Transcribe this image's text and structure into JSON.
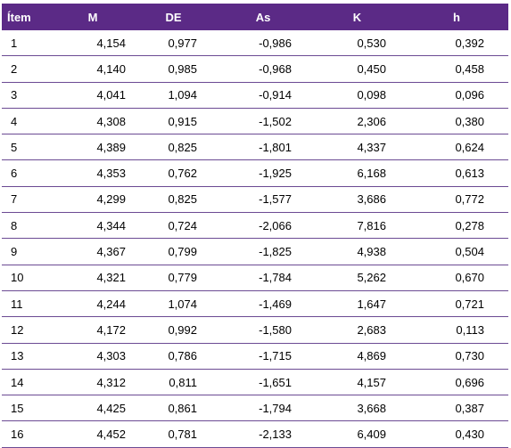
{
  "table": {
    "headers": [
      "Ítem",
      "M",
      "DE",
      "As",
      "K",
      "h"
    ],
    "rows": [
      [
        "1",
        "4,154",
        "0,977",
        "-0,986",
        "0,530",
        "0,392"
      ],
      [
        "2",
        "4,140",
        "0,985",
        "-0,968",
        "0,450",
        "0,458"
      ],
      [
        "3",
        "4,041",
        "1,094",
        "-0,914",
        "0,098",
        "0,096"
      ],
      [
        "4",
        "4,308",
        "0,915",
        "-1,502",
        "2,306",
        "0,380"
      ],
      [
        "5",
        "4,389",
        "0,825",
        "-1,801",
        "4,337",
        "0,624"
      ],
      [
        "6",
        "4,353",
        "0,762",
        "-1,925",
        "6,168",
        "0,613"
      ],
      [
        "7",
        "4,299",
        "0,825",
        "-1,577",
        "3,686",
        "0,772"
      ],
      [
        "8",
        "4,344",
        "0,724",
        "-2,066",
        "7,816",
        "0,278"
      ],
      [
        "9",
        "4,367",
        "0,799",
        "-1,825",
        "4,938",
        "0,504"
      ],
      [
        "10",
        "4,321",
        "0,779",
        "-1,784",
        "5,262",
        "0,670"
      ],
      [
        "11",
        "4,244",
        "1,074",
        "-1,469",
        "1,647",
        "0,721"
      ],
      [
        "12",
        "4,172",
        "0,992",
        "-1,580",
        "2,683",
        "0,113"
      ],
      [
        "13",
        "4,303",
        "0,786",
        "-1,715",
        "4,869",
        "0,730"
      ],
      [
        "14",
        "4,312",
        "0,811",
        "-1,651",
        "4,157",
        "0,696"
      ],
      [
        "15",
        "4,425",
        "0,861",
        "-1,794",
        "3,668",
        "0,387"
      ],
      [
        "16",
        "4,452",
        "0,781",
        "-2,133",
        "6,409",
        "0,430"
      ]
    ]
  },
  "colors": {
    "header_background": "#5b2a86",
    "header_text": "#ffffff",
    "row_divider": "#6b4a93"
  }
}
